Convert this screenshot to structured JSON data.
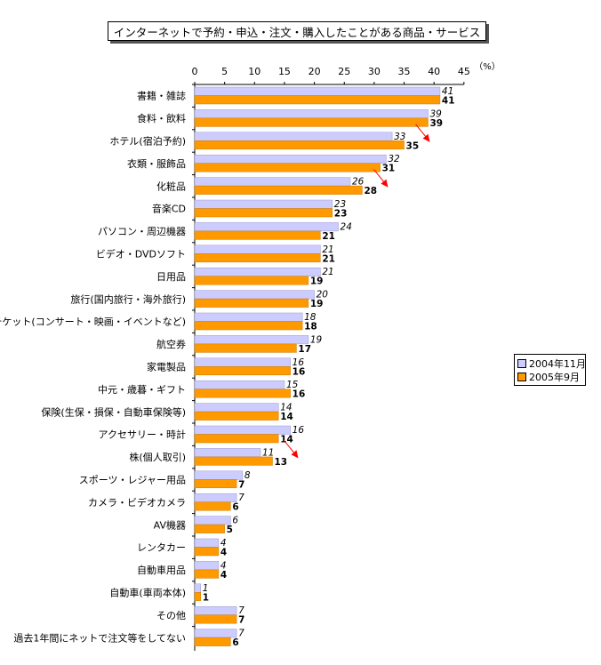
{
  "chart_data": {
    "type": "bar",
    "orientation": "horizontal",
    "title": "インターネットで予約・申込・注文・購入したことがある商品・サービス",
    "unit_label": "（%）",
    "xlim": [
      0,
      45
    ],
    "ticks": [
      0,
      5,
      10,
      15,
      20,
      25,
      30,
      35,
      40,
      45
    ],
    "tick_labels": [
      "0",
      "5",
      "10",
      "15",
      "20",
      "25",
      "30",
      "35",
      "40",
      "45"
    ],
    "legend_position": "right",
    "categories": [
      "書籍・雑誌",
      "食料・飲料",
      "ホテル(宿泊予約)",
      "衣類・服飾品",
      "化粧品",
      "音楽CD",
      "パソコン・周辺機器",
      "ビデオ・DVDソフト",
      "日用品",
      "旅行(国内旅行・海外旅行)",
      "興行チケット(コンサート・映画・イベントなど)",
      "航空券",
      "家電製品",
      "中元・歳暮・ギフト",
      "保険(生保・損保・自動車保険等)",
      "アクセサリー・時計",
      "株(個人取引)",
      "スポーツ・レジャー用品",
      "カメラ・ビデオカメラ",
      "AV機器",
      "レンタカー",
      "自動車用品",
      "自動車(車両本体)",
      "その他",
      "過去1年間にネットで注文等をしてない"
    ],
    "series": [
      {
        "name": "2004年11月",
        "color": "#ccccff",
        "values": [
          41,
          39,
          33,
          32,
          26,
          23,
          24,
          21,
          21,
          20,
          18,
          19,
          16,
          15,
          14,
          16,
          11,
          8,
          7,
          6,
          4,
          4,
          1,
          7,
          7
        ]
      },
      {
        "name": "2005年9月",
        "color": "#ff9900",
        "values": [
          41,
          39,
          35,
          31,
          28,
          23,
          21,
          21,
          19,
          19,
          18,
          17,
          16,
          16,
          14,
          14,
          13,
          7,
          6,
          5,
          4,
          4,
          1,
          7,
          6
        ]
      }
    ],
    "annotations": [
      {
        "category": "ホテル(宿泊予約)",
        "icon": "red-arrow-up-icon",
        "color": "#ff0000"
      },
      {
        "category": "化粧品",
        "icon": "red-arrow-up-icon",
        "color": "#ff0000"
      },
      {
        "category": "株(個人取引)",
        "icon": "red-arrow-up-icon",
        "color": "#ff0000"
      }
    ]
  }
}
